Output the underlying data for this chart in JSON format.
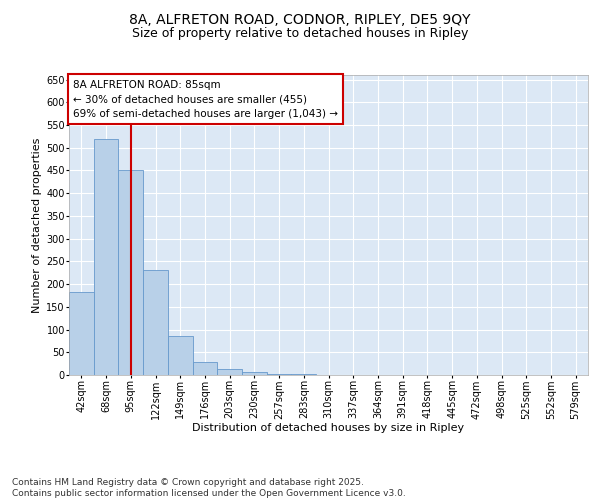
{
  "title_line1": "8A, ALFRETON ROAD, CODNOR, RIPLEY, DE5 9QY",
  "title_line2": "Size of property relative to detached houses in Ripley",
  "xlabel": "Distribution of detached houses by size in Ripley",
  "ylabel": "Number of detached properties",
  "categories": [
    "42sqm",
    "68sqm",
    "95sqm",
    "122sqm",
    "149sqm",
    "176sqm",
    "203sqm",
    "230sqm",
    "257sqm",
    "283sqm",
    "310sqm",
    "337sqm",
    "364sqm",
    "391sqm",
    "418sqm",
    "445sqm",
    "472sqm",
    "498sqm",
    "525sqm",
    "552sqm",
    "579sqm"
  ],
  "values": [
    182,
    520,
    450,
    232,
    85,
    28,
    13,
    6,
    3,
    2,
    1,
    1,
    0,
    0,
    0,
    0,
    0,
    0,
    0,
    0,
    0
  ],
  "bar_color": "#b8d0e8",
  "bar_edge_color": "#6699cc",
  "vline_x": 2.0,
  "vline_color": "#cc0000",
  "annotation_box_text": "8A ALFRETON ROAD: 85sqm\n← 30% of detached houses are smaller (455)\n69% of semi-detached houses are larger (1,043) →",
  "box_edge_color": "#cc0000",
  "box_face_color": "#ffffff",
  "ylim": [
    0,
    660
  ],
  "yticks": [
    0,
    50,
    100,
    150,
    200,
    250,
    300,
    350,
    400,
    450,
    500,
    550,
    600,
    650
  ],
  "background_color": "#dce8f5",
  "grid_color": "#ffffff",
  "fig_background": "#ffffff",
  "footer_text": "Contains HM Land Registry data © Crown copyright and database right 2025.\nContains public sector information licensed under the Open Government Licence v3.0.",
  "title_fontsize": 10,
  "subtitle_fontsize": 9,
  "axis_label_fontsize": 8,
  "tick_fontsize": 7,
  "annotation_fontsize": 7.5,
  "footer_fontsize": 6.5
}
